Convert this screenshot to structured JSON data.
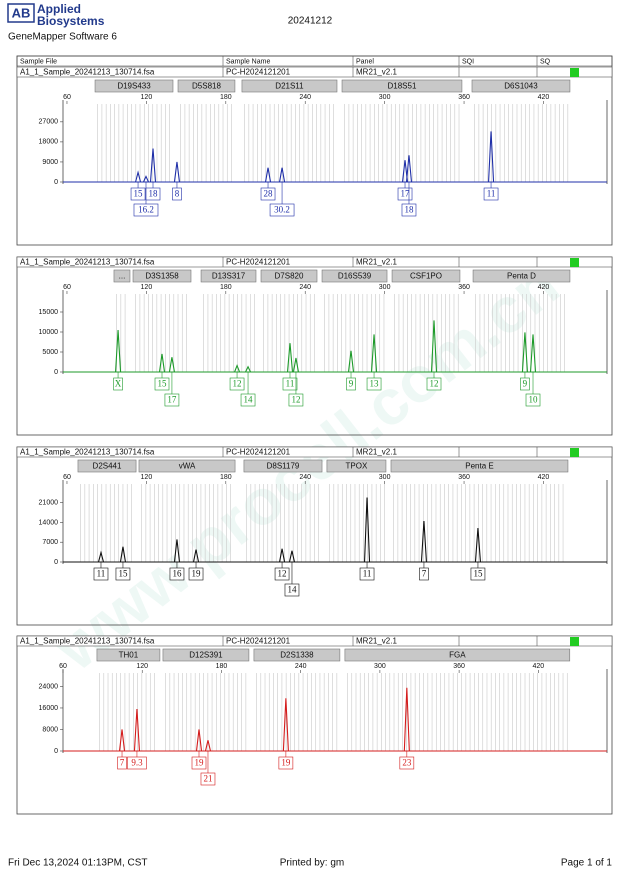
{
  "header": {
    "logo": "AB",
    "brand_lines": [
      "Applied",
      "Biosystems"
    ],
    "software": "GeneMapper Software 6",
    "title": "20241212"
  },
  "columns": [
    "Sample File",
    "Sample Name",
    "Panel",
    "SQI",
    "SQ"
  ],
  "panels": [
    {
      "sample_file": "A1_1_Sample_20241213_130714.fsa",
      "sample_name": "PC-H2024121201",
      "panel": "MR21_v2.1",
      "color": "#1f2fa8",
      "xlim": [
        57,
        468
      ],
      "xticks": [
        60,
        120,
        180,
        240,
        300,
        360,
        420
      ],
      "ylim": [
        0,
        35000
      ],
      "yticks": [
        0,
        9000,
        18000,
        27000
      ],
      "markers": [
        {
          "name": "D19S433",
          "range": [
            81.2,
            140.1
          ]
        },
        {
          "name": "D5S818",
          "range": [
            143.9,
            186.9
          ]
        },
        {
          "name": "D21S11",
          "range": [
            192.2,
            264
          ]
        },
        {
          "name": "D18S51",
          "range": [
            267.8,
            358.4
          ]
        },
        {
          "name": "D6S1043",
          "range": [
            366,
            440
          ]
        }
      ],
      "peaks": [
        {
          "size": 113.7,
          "height": 4300,
          "label": "15"
        },
        {
          "size": 119.7,
          "height": 2500,
          "label": "16.2"
        },
        {
          "size": 125,
          "height": 15000,
          "label": "18"
        },
        {
          "size": 143.1,
          "height": 9000,
          "label": "8"
        },
        {
          "size": 211.9,
          "height": 6400,
          "label": "28"
        },
        {
          "size": 222.5,
          "height": 6400,
          "label": "30.2"
        },
        {
          "size": 315.4,
          "height": 9800,
          "label": "17"
        },
        {
          "size": 318.4,
          "height": 12000,
          "label": "18"
        },
        {
          "size": 380.4,
          "height": 22700,
          "label": "11"
        }
      ]
    },
    {
      "sample_file": "A1_1_Sample_20241213_130714.fsa",
      "sample_name": "PC-H2024121201",
      "panel": "MR21_v2.1",
      "color": "#1d9a2a",
      "xlim": [
        57,
        468
      ],
      "xticks": [
        60,
        120,
        180,
        240,
        300,
        360,
        420
      ],
      "ylim": [
        0,
        19500
      ],
      "yticks": [
        0,
        5000,
        10000,
        15000
      ],
      "markers": [
        {
          "name": "...",
          "range": [
            95.5,
            107.6
          ]
        },
        {
          "name": "D3S1358",
          "range": [
            109.9,
            153.7
          ]
        },
        {
          "name": "D13S317",
          "range": [
            161.3,
            202.8
          ]
        },
        {
          "name": "D7S820",
          "range": [
            206.6,
            248.9
          ]
        },
        {
          "name": "D16S539",
          "range": [
            252.7,
            301.8
          ]
        },
        {
          "name": "CSF1PO",
          "range": [
            305.6,
            356.9
          ]
        },
        {
          "name": "Penta D",
          "range": [
            366.8,
            440
          ]
        }
      ],
      "peaks": [
        {
          "size": 98.6,
          "height": 10500,
          "label": "X"
        },
        {
          "size": 131.8,
          "height": 4500,
          "label": "15"
        },
        {
          "size": 139.3,
          "height": 3700,
          "label": "17"
        },
        {
          "size": 188.5,
          "height": 1600,
          "label": "12"
        },
        {
          "size": 196.8,
          "height": 1300,
          "label": "14"
        },
        {
          "size": 228.5,
          "height": 7200,
          "label": "11"
        },
        {
          "size": 233,
          "height": 3500,
          "label": "12"
        },
        {
          "size": 274.6,
          "height": 5300,
          "label": "9"
        },
        {
          "size": 292,
          "height": 9400,
          "label": "13"
        },
        {
          "size": 337.3,
          "height": 12900,
          "label": "12"
        },
        {
          "size": 406,
          "height": 9900,
          "label": "9"
        },
        {
          "size": 412.1,
          "height": 9400,
          "label": "10"
        }
      ]
    },
    {
      "sample_file": "A1_1_Sample_20241213_130714.fsa",
      "sample_name": "PC-H2024121201",
      "panel": "MR21_v2.1",
      "color": "#111111",
      "xlim": [
        57,
        468
      ],
      "xticks": [
        60,
        120,
        180,
        240,
        300,
        360,
        420
      ],
      "ylim": [
        0,
        27600
      ],
      "yticks": [
        0,
        7000,
        14000,
        21000
      ],
      "markers": [
        {
          "name": "D2S441",
          "range": [
            68.3,
            112.2
          ]
        },
        {
          "name": "vWA",
          "range": [
            114.4,
            187
          ]
        },
        {
          "name": "D8S1179",
          "range": [
            193.7,
            252.7
          ]
        },
        {
          "name": "TPOX",
          "range": [
            256.4,
            301
          ]
        },
        {
          "name": "Penta E",
          "range": [
            304.8,
            438.5
          ]
        }
      ],
      "peaks": [
        {
          "size": 85.7,
          "height": 3300,
          "label": "11"
        },
        {
          "size": 102.3,
          "height": 5400,
          "label": "15"
        },
        {
          "size": 143.1,
          "height": 8000,
          "label": "16"
        },
        {
          "size": 157.5,
          "height": 4400,
          "label": "19"
        },
        {
          "size": 222.5,
          "height": 4700,
          "label": "12"
        },
        {
          "size": 230,
          "height": 4000,
          "label": "14"
        },
        {
          "size": 286.7,
          "height": 22800,
          "label": "11"
        },
        {
          "size": 329.7,
          "height": 14500,
          "label": "7"
        },
        {
          "size": 370.5,
          "height": 12000,
          "label": "15"
        }
      ]
    },
    {
      "sample_file": "A1_1_Sample_20241213_130714.fsa",
      "sample_name": "PC-H2024121201",
      "panel": "MR21_v2.1",
      "color": "#d41c1c",
      "xlim": [
        60,
        472
      ],
      "xticks": [
        60,
        120,
        180,
        240,
        300,
        360,
        420
      ],
      "ylim": [
        0,
        29000
      ],
      "yticks": [
        0,
        8000,
        16000,
        24000
      ],
      "markers": [
        {
          "name": "TH01",
          "range": [
            85.7,
            133.4
          ]
        },
        {
          "name": "D12S391",
          "range": [
            135.7,
            200.8
          ]
        },
        {
          "name": "D2S1338",
          "range": [
            204.6,
            269.7
          ]
        },
        {
          "name": "FGA",
          "range": [
            273.5,
            443.8
          ]
        }
      ],
      "peaks": [
        {
          "size": 104.7,
          "height": 8000,
          "label": "7"
        },
        {
          "size": 116,
          "height": 15600,
          "label": "9.3"
        },
        {
          "size": 163,
          "height": 8000,
          "label": "19"
        },
        {
          "size": 169.8,
          "height": 4000,
          "label": "21"
        },
        {
          "size": 228.8,
          "height": 19600,
          "label": "19"
        },
        {
          "size": 320.4,
          "height": 23500,
          "label": "23"
        }
      ]
    }
  ],
  "footer": {
    "date": "Fri Dec 13,2024 01:13PM, CST",
    "printed_by": "Printed by: gm",
    "page": "Page 1 of 1"
  },
  "watermark": "www.procell.com.cn"
}
